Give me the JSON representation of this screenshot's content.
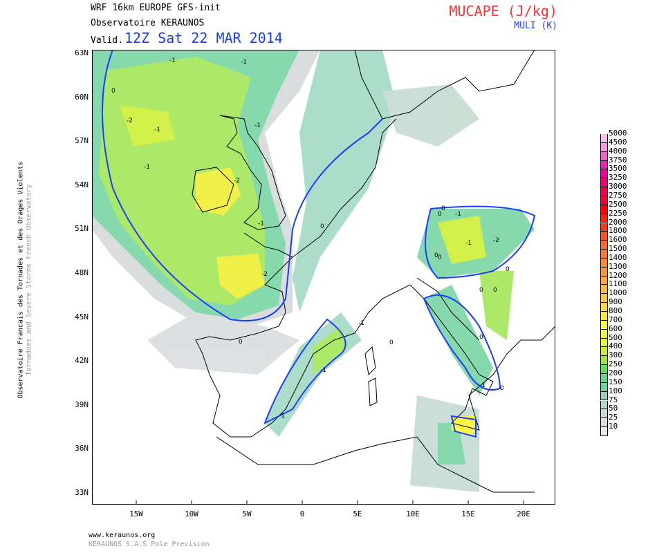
{
  "header": {
    "model": "WRF 16km EUROPE   GFS-init",
    "org": "Observatoire KERAUNOS",
    "valid_label": "Valid.",
    "valid_time": "12Z Sat 22 MAR 2014",
    "field_title": "MUCAPE (J/kg)",
    "field_subtitle": "MULI (K)"
  },
  "side": {
    "line1": "Observatoire Francais des Tornades et des Orages Violents",
    "line2": "Tornadoes and Severe Storms French Observatory"
  },
  "footer": {
    "url": "www.keraunos.org",
    "company": "KERAUNOS S.A.S Pole Prevision"
  },
  "map": {
    "lat_labels": [
      "63N",
      "60N",
      "57N",
      "54N",
      "51N",
      "48N",
      "45N",
      "42N",
      "39N",
      "36N",
      "33N"
    ],
    "lon_labels": [
      "15W",
      "10W",
      "5W",
      "0",
      "5E",
      "10E",
      "15E",
      "20E"
    ],
    "contour_labels": [
      "-1",
      "-1",
      "0",
      "-2",
      "-1",
      "-1",
      "-1",
      "-2",
      "-1",
      "0",
      "0",
      "-1",
      "-1",
      "-2",
      "0",
      "0",
      "0",
      "-1",
      "-2",
      "0",
      "-1",
      "-1",
      "0",
      "0",
      "0",
      "0",
      "-1",
      "0",
      "0"
    ],
    "colors": {
      "coast": "#000000",
      "contour": "#1a3cff",
      "title": "#ff3333",
      "valid": "#1a3cff"
    }
  },
  "colorbar": {
    "labels": [
      "5000",
      "4500",
      "4000",
      "3750",
      "3500",
      "3250",
      "3000",
      "2750",
      "2500",
      "2250",
      "2000",
      "1800",
      "1600",
      "1500",
      "1400",
      "1300",
      "1200",
      "1100",
      "1000",
      "900",
      "800",
      "700",
      "600",
      "500",
      "400",
      "300",
      "250",
      "200",
      "150",
      "100",
      "75",
      "50",
      "25",
      "10"
    ],
    "colors": [
      "#f8c0ec",
      "#f898e0",
      "#f060d0",
      "#f020c0",
      "#f000a0",
      "#f00070",
      "#f00050",
      "#f80038",
      "#ff0000",
      "#ff2000",
      "#ff3810",
      "#ff5020",
      "#ff6828",
      "#ff7830",
      "#ff8830",
      "#ff9830",
      "#ffa838",
      "#ffb838",
      "#ffc838",
      "#ffd838",
      "#ffe838",
      "#fff838",
      "#f0ff30",
      "#e0ff30",
      "#c8f028",
      "#a0e830",
      "#60e050",
      "#60d888",
      "#68d8a0",
      "#90d0b8",
      "#b0d8c8",
      "#c8dcd4",
      "#dcdfe0",
      "#ececee"
    ]
  }
}
